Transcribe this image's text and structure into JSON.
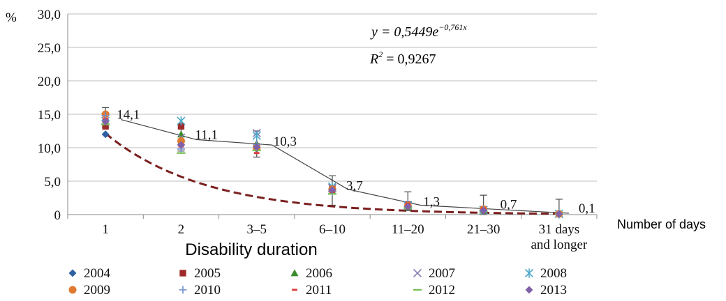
{
  "chart_data": {
    "type": "line",
    "title": "",
    "y_unit_label": "%",
    "xlabel": "Disability duration",
    "x_extra_label": "Number of days",
    "categories": [
      "1",
      "2",
      "3–5",
      "6–10",
      "11–20",
      "21–30",
      "31 days\nand longer"
    ],
    "ylim": [
      0,
      30
    ],
    "yticks": [
      "0",
      "5,0",
      "10,0",
      "15,0",
      "20,0",
      "25,0",
      "30,0"
    ],
    "grid": true,
    "legend_position": "bottom",
    "mean_series": {
      "values": [
        14.1,
        11.1,
        10.3,
        3.7,
        1.3,
        0.7,
        0.1
      ],
      "labels": [
        "14,1",
        "11,1",
        "10,3",
        "3,7",
        "1,3",
        "0,7",
        "0,1"
      ],
      "error_low": [
        13.0,
        9.5,
        8.6,
        1.4,
        0.6,
        0.0,
        0.0
      ],
      "error_high": [
        16.0,
        13.5,
        12.5,
        5.8,
        3.4,
        2.9,
        2.3
      ]
    },
    "trendline": {
      "equation": "y = 0,5449e",
      "exponent": "−0,761x",
      "r2_label": "R",
      "r2_value": " = 0,9267",
      "a": 0.5449,
      "b": -0.761,
      "x_start": 1,
      "x_end": 7,
      "color": "#7b1f1f"
    },
    "series": [
      {
        "name": "2004",
        "marker": "diamond",
        "color": "#2e5fa3",
        "values": [
          12.0,
          10.5,
          9.8,
          3.6,
          1.2,
          0.6,
          0.1
        ]
      },
      {
        "name": "2005",
        "marker": "square",
        "color": "#9e2a2a",
        "values": [
          13.2,
          13.2,
          10.2,
          3.9,
          1.5,
          0.8,
          0.1
        ]
      },
      {
        "name": "2006",
        "marker": "triangle",
        "color": "#3a8a2a",
        "values": [
          13.8,
          12.0,
          10.6,
          3.5,
          1.1,
          0.6,
          0.1
        ]
      },
      {
        "name": "2007",
        "marker": "x",
        "color": "#8a7fb5",
        "values": [
          14.0,
          11.5,
          12.2,
          4.0,
          1.3,
          0.7,
          0.1
        ]
      },
      {
        "name": "2008",
        "marker": "star",
        "color": "#4aa7c7",
        "values": [
          14.6,
          14.0,
          11.8,
          4.2,
          1.4,
          0.7,
          0.1
        ]
      },
      {
        "name": "2009",
        "marker": "circle",
        "color": "#e07a30",
        "values": [
          15.0,
          11.0,
          10.0,
          3.8,
          1.3,
          0.8,
          0.1
        ]
      },
      {
        "name": "2010",
        "marker": "plus",
        "color": "#6f8fd0",
        "values": [
          14.8,
          9.8,
          10.5,
          3.4,
          1.2,
          0.7,
          0.1
        ]
      },
      {
        "name": "2011",
        "marker": "dash",
        "color": "#e04040",
        "values": [
          14.3,
          10.2,
          9.2,
          3.3,
          1.6,
          0.9,
          0.1
        ]
      },
      {
        "name": "2012",
        "marker": "hline",
        "color": "#7cc05a",
        "values": [
          13.5,
          9.2,
          9.6,
          3.1,
          1.0,
          0.5,
          0.1
        ]
      },
      {
        "name": "2013",
        "marker": "diamond",
        "color": "#8060a8",
        "values": [
          13.9,
          10.4,
          10.1,
          3.7,
          1.2,
          0.6,
          0.1
        ]
      }
    ]
  }
}
